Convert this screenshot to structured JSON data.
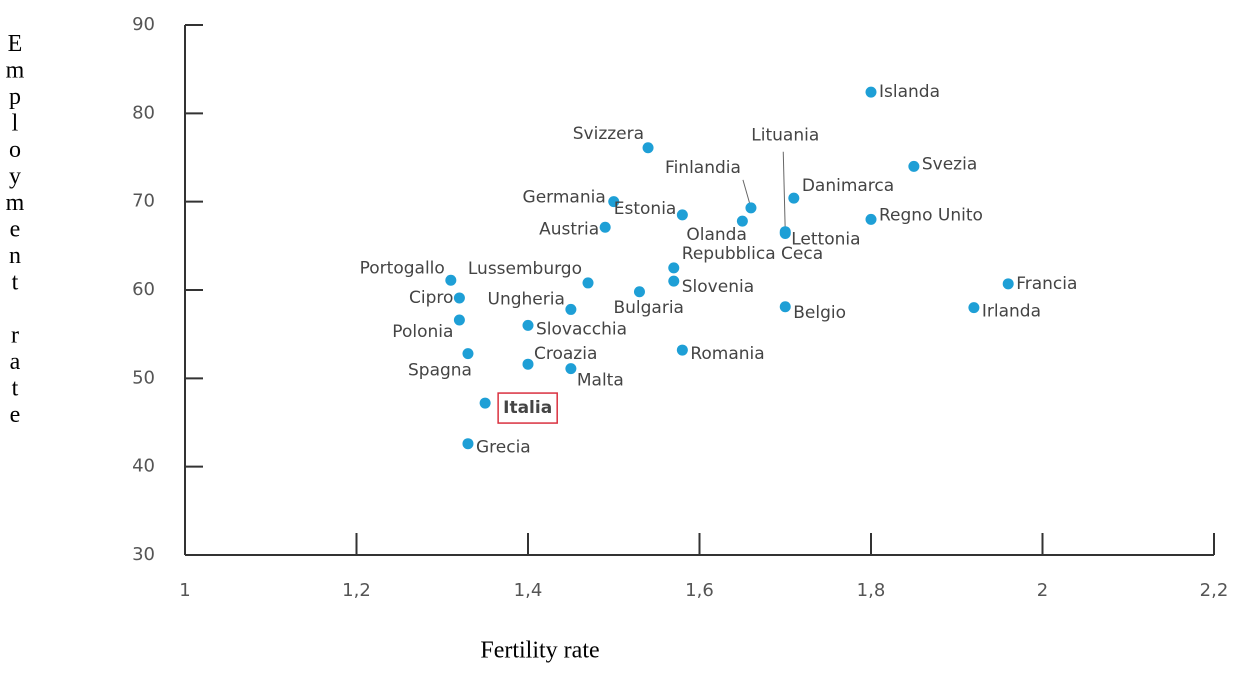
{
  "chart_data": {
    "type": "scatter",
    "xlabel": "Fertility rate",
    "ylabel": "Employment rate",
    "labels": [
      "Islanda",
      "Svezia",
      "Svizzera",
      "Lituania",
      "Finlandia",
      "Danimarca",
      "Regno Unito",
      "Germania",
      "Estonia",
      "Olanda",
      "Austria",
      "Lettonia",
      "Portogallo",
      "Cipro",
      "Polonia",
      "Lussemburgo",
      "Ungheria",
      "Bulgaria",
      "Repubblica Ceca",
      "Slovenia",
      "Belgio",
      "Francia",
      "Irlanda",
      "Slovacchia",
      "Croazia",
      "Malta",
      "Spagna",
      "Romania",
      "Italia",
      "Grecia"
    ],
    "x": [
      1.8,
      1.85,
      1.54,
      1.7,
      1.66,
      1.71,
      1.8,
      1.5,
      1.58,
      1.65,
      1.49,
      1.7,
      1.31,
      1.32,
      1.32,
      1.47,
      1.45,
      1.53,
      1.57,
      1.57,
      1.7,
      1.96,
      1.92,
      1.4,
      1.4,
      1.45,
      1.33,
      1.58,
      1.35,
      1.33
    ],
    "y": [
      82.4,
      74.0,
      76.1,
      66.6,
      69.3,
      70.4,
      68.0,
      70.0,
      68.5,
      67.8,
      67.1,
      66.4,
      61.1,
      59.1,
      56.6,
      60.8,
      57.8,
      59.8,
      62.5,
      61.0,
      58.1,
      60.7,
      58.0,
      56.0,
      51.6,
      51.1,
      52.8,
      53.2,
      47.2,
      42.6
    ],
    "color": "#1e9fd6",
    "highlight": "Italia",
    "highlight_color": "#d9303f",
    "xlim": [
      1,
      2.2
    ],
    "xticks": [
      1,
      {
        "value": 1.2,
        "label": "1,2"
      },
      {
        "value": 1.4,
        "label": "1,4"
      },
      {
        "value": 1.6,
        "label": "1,6"
      },
      {
        "value": 1.8,
        "label": "1,8"
      },
      2,
      {
        "value": 2.2,
        "label": "2,2"
      }
    ],
    "ylim": [
      30,
      90
    ],
    "yticks": [
      30,
      40,
      50,
      60,
      70,
      80,
      90
    ]
  }
}
